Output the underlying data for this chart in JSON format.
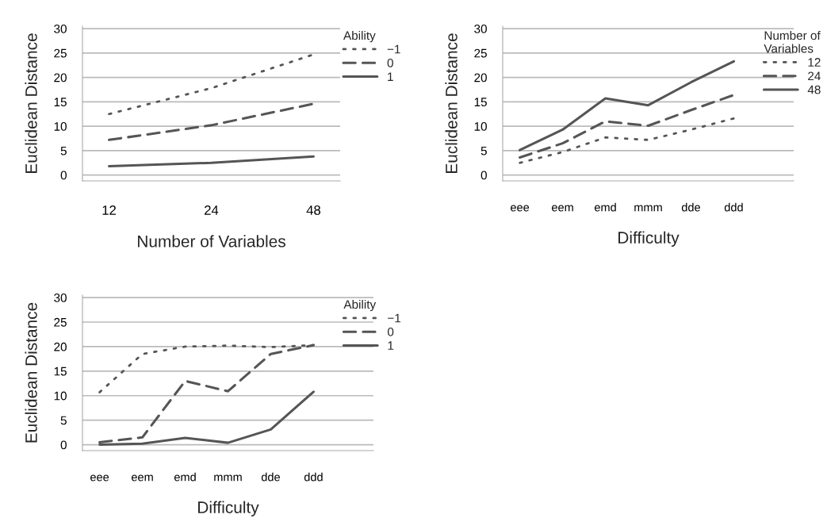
{
  "chart_data": [
    {
      "type": "line",
      "xlabel": "Number of Variables",
      "ylabel": "Euclidean Distance",
      "legend_title": "Ability",
      "legend": "top right",
      "grid": "y",
      "categories": [
        "12",
        "24",
        "48"
      ],
      "ylim": [
        -1.2,
        30.5
      ],
      "yticks": [
        0,
        5,
        10,
        15,
        20,
        25,
        30
      ],
      "series": [
        {
          "name": "−1",
          "color": "#555555",
          "line_style": "dotted",
          "values": [
            12.5,
            17.8,
            24.7
          ]
        },
        {
          "name": "0",
          "color": "#555555",
          "line_style": "dashed",
          "values": [
            7.2,
            10.2,
            14.6
          ]
        },
        {
          "name": "1",
          "color": "#555555",
          "line_style": "solid",
          "values": [
            1.8,
            2.5,
            3.8
          ]
        }
      ]
    },
    {
      "type": "line",
      "xlabel": "Difficulty",
      "ylabel": "Euclidean Distance",
      "legend_title": "Number of\nVariables",
      "legend": "top right",
      "grid": "y",
      "categories": [
        "eee",
        "eem",
        "emd",
        "mmm",
        "dde",
        "ddd"
      ],
      "ylim": [
        -1.2,
        30.5
      ],
      "yticks": [
        0,
        5,
        10,
        15,
        20,
        25,
        30
      ],
      "series": [
        {
          "name": "12",
          "color": "#555555",
          "line_style": "dotted",
          "values": [
            2.5,
            4.7,
            7.7,
            7.2,
            9.3,
            11.6
          ]
        },
        {
          "name": "24",
          "color": "#555555",
          "line_style": "dashed",
          "values": [
            3.6,
            6.5,
            11.0,
            10.1,
            13.3,
            16.4
          ]
        },
        {
          "name": "48",
          "color": "#555555",
          "line_style": "solid",
          "values": [
            5.1,
            9.3,
            15.7,
            14.3,
            19.0,
            23.3
          ]
        }
      ]
    },
    {
      "type": "line",
      "xlabel": "Difficulty",
      "ylabel": "Euclidean Distance",
      "legend_title": "Ability",
      "legend": "top right",
      "grid": "y",
      "categories": [
        "eee",
        "eem",
        "emd",
        "mmm",
        "dde",
        "ddd"
      ],
      "ylim": [
        -1.2,
        30.5
      ],
      "yticks": [
        0,
        5,
        10,
        15,
        20,
        25,
        30
      ],
      "series": [
        {
          "name": "−1",
          "color": "#555555",
          "line_style": "dotted",
          "values": [
            10.7,
            18.5,
            20.0,
            20.2,
            19.9,
            20.3
          ]
        },
        {
          "name": "0",
          "color": "#555555",
          "line_style": "dashed",
          "values": [
            0.5,
            1.5,
            13.0,
            10.9,
            18.5,
            20.3
          ]
        },
        {
          "name": "1",
          "color": "#555555",
          "line_style": "solid",
          "values": [
            0.0,
            0.2,
            1.4,
            0.4,
            3.1,
            10.8
          ]
        }
      ]
    }
  ]
}
